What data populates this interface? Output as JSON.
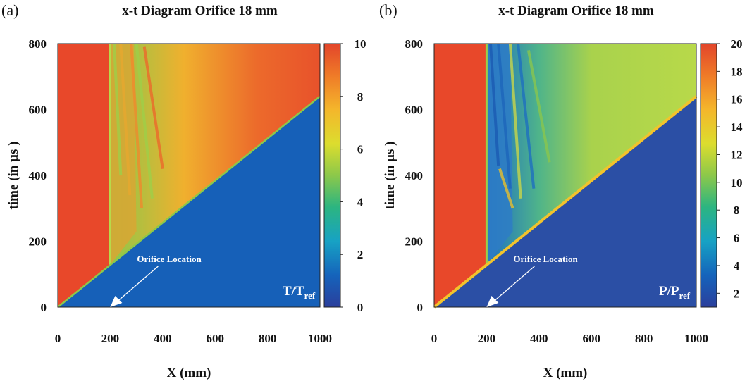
{
  "chart_data": [
    {
      "type": "heatmap",
      "panel": "(a)",
      "title": "x-t Diagram Orifice 18 mm",
      "xlabel": "X (mm)",
      "ylabel": "time (in µs )",
      "xlim": [
        0,
        1000
      ],
      "ylim": [
        0,
        800
      ],
      "xticks": [
        "0",
        "200",
        "400",
        "600",
        "800",
        "1000"
      ],
      "yticks": [
        "0",
        "200",
        "400",
        "600",
        "800"
      ],
      "colorbar": {
        "min": 0,
        "max": 10,
        "ticks": [
          "0",
          "2",
          "4",
          "6",
          "8",
          "10"
        ]
      },
      "quantity_label": {
        "main": "T/T",
        "sub": "ref"
      },
      "annotation": {
        "text": "Orifice Location",
        "x": 200,
        "y": 0
      },
      "regions": {
        "ambient_value": 1,
        "driver_value": 9.5,
        "shock_front": [
          [
            0,
            0
          ],
          [
            1000,
            640
          ]
        ],
        "orifice_x": 200,
        "fan_edges": [
          [
            200,
            128
          ],
          [
            290,
            800
          ]
        ]
      }
    },
    {
      "type": "heatmap",
      "panel": "(b)",
      "title": "x-t Diagram Orifice 18 mm",
      "xlabel": "X (mm)",
      "ylabel": "time (in µs )",
      "xlim": [
        0,
        1000
      ],
      "ylim": [
        0,
        800
      ],
      "xticks": [
        "0",
        "200",
        "400",
        "600",
        "800",
        "1000"
      ],
      "yticks": [
        "0",
        "200",
        "400",
        "600",
        "800"
      ],
      "colorbar": {
        "min": 1,
        "max": 20,
        "ticks": [
          "2",
          "4",
          "6",
          "8",
          "10",
          "12",
          "14",
          "16",
          "18",
          "20"
        ]
      },
      "quantity_label": {
        "main": "P/P",
        "sub": "ref"
      },
      "annotation": {
        "text": "Orifice Location",
        "x": 200,
        "y": 0
      },
      "regions": {
        "ambient_value": 1,
        "driver_value": 19,
        "shock_front": [
          [
            0,
            0
          ],
          [
            1000,
            640
          ]
        ],
        "orifice_x": 200,
        "fan_edges": [
          [
            200,
            128
          ],
          [
            290,
            800
          ]
        ]
      }
    }
  ],
  "colors": {
    "red": "#e8482a",
    "blue": "#1660b8",
    "blue_deep": "#2b4fa5",
    "green": "#8cc84a",
    "yellow": "#e6dc2a",
    "teal": "#2aa58c"
  }
}
